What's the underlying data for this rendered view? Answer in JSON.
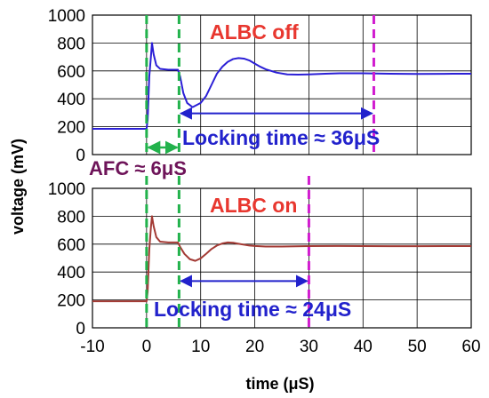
{
  "chart_data": [
    {
      "panel": "top",
      "type": "line",
      "title": "ALBC off",
      "title_color": "#e8372f",
      "xlim": [
        -10,
        60
      ],
      "ylim": [
        0,
        1000
      ],
      "y_ticks": [
        "0",
        "200",
        "400",
        "600",
        "800",
        "1000"
      ],
      "grid": true,
      "series": [
        {
          "color": "#2b1fd6",
          "points": [
            [
              -10,
              185
            ],
            [
              0,
              185
            ],
            [
              0.2,
              250
            ],
            [
              0.5,
              560
            ],
            [
              0.8,
              700
            ],
            [
              1.0,
              800
            ],
            [
              1.3,
              720
            ],
            [
              1.8,
              640
            ],
            [
              2.5,
              615
            ],
            [
              4,
              608
            ],
            [
              5.8,
              608
            ],
            [
              6.2,
              560
            ],
            [
              6.8,
              440
            ],
            [
              7.5,
              370
            ],
            [
              8.5,
              340
            ],
            [
              10,
              370
            ],
            [
              11,
              420
            ],
            [
              12,
              500
            ],
            [
              13,
              580
            ],
            [
              14,
              630
            ],
            [
              15,
              665
            ],
            [
              16,
              685
            ],
            [
              17,
              692
            ],
            [
              18,
              688
            ],
            [
              19,
              675
            ],
            [
              20,
              652
            ],
            [
              21,
              630
            ],
            [
              22,
              612
            ],
            [
              24,
              588
            ],
            [
              26,
              575
            ],
            [
              28,
              573
            ],
            [
              30,
              575
            ],
            [
              33,
              580
            ],
            [
              36,
              583
            ],
            [
              40,
              583
            ],
            [
              45,
              580
            ],
            [
              50,
              578
            ],
            [
              55,
              579
            ],
            [
              60,
              580
            ]
          ]
        }
      ],
      "markers": [
        {
          "x": 0,
          "color": "#22b24c",
          "style": "dashed"
        },
        {
          "x": 6,
          "color": "#22b24c",
          "style": "dashed"
        },
        {
          "x": 42,
          "color": "#d11ccf",
          "style": "dashed"
        }
      ],
      "annotations": [
        {
          "text": "Locking time ≈ 36μS",
          "color": "#2222cc",
          "arrow_from": 6,
          "arrow_to": 42
        }
      ]
    },
    {
      "panel": "bottom",
      "type": "line",
      "title": "ALBC on",
      "title_color": "#e8372f",
      "xlim": [
        -10,
        60
      ],
      "ylim": [
        0,
        1000
      ],
      "y_ticks": [
        "0",
        "200",
        "400",
        "600",
        "800",
        "1000"
      ],
      "x_ticks": [
        "-10",
        "0",
        "10",
        "20",
        "30",
        "40",
        "50",
        "60"
      ],
      "xlabel": "time (μS)",
      "grid": true,
      "series": [
        {
          "color": "#a33a34",
          "points": [
            [
              -10,
              190
            ],
            [
              0,
              190
            ],
            [
              0.2,
              260
            ],
            [
              0.5,
              560
            ],
            [
              0.8,
              720
            ],
            [
              1.0,
              800
            ],
            [
              1.3,
              730
            ],
            [
              1.8,
              650
            ],
            [
              2.5,
              618
            ],
            [
              4,
              612
            ],
            [
              5.8,
              612
            ],
            [
              6.2,
              580
            ],
            [
              7,
              530
            ],
            [
              8,
              492
            ],
            [
              9,
              480
            ],
            [
              10,
              498
            ],
            [
              11,
              530
            ],
            [
              12,
              565
            ],
            [
              13,
              590
            ],
            [
              14,
              605
            ],
            [
              15,
              612
            ],
            [
              16,
              610
            ],
            [
              17,
              603
            ],
            [
              18,
              596
            ],
            [
              19,
              590
            ],
            [
              20,
              587
            ],
            [
              22,
              583
            ],
            [
              25,
              583
            ],
            [
              30,
              586
            ],
            [
              35,
              587
            ],
            [
              40,
              586
            ],
            [
              45,
              585
            ],
            [
              50,
              585
            ],
            [
              55,
              586
            ],
            [
              60,
              586
            ]
          ]
        }
      ],
      "markers": [
        {
          "x": 0,
          "color": "#22b24c",
          "style": "dashed"
        },
        {
          "x": 6,
          "color": "#22b24c",
          "style": "dashed"
        },
        {
          "x": 30,
          "color": "#d11ccf",
          "style": "dashed"
        }
      ],
      "annotations": [
        {
          "text": "Locking time ≈ 24μS",
          "color": "#2222cc",
          "arrow_from": 6,
          "arrow_to": 30
        }
      ]
    }
  ],
  "shared": {
    "ylabel": "voltage (mV)",
    "afc_label": "AFC ≈ 6μS",
    "afc_color": "#6e1459",
    "afc_arrow_color": "#22b24c",
    "afc_from": 0,
    "afc_to": 6
  }
}
